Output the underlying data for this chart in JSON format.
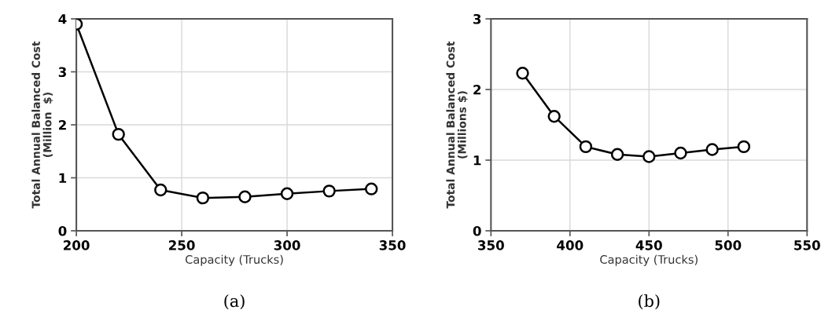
{
  "chart_data": [
    {
      "type": "line",
      "xlabel": "Capacity (Trucks)",
      "ylabel": "Total Annual Balanced Cost\n(Million  $)",
      "annotations": [
        "(a)"
      ],
      "x": [
        200,
        220,
        240,
        260,
        280,
        300,
        320,
        340
      ],
      "series": [
        {
          "color": "#000000",
          "values": [
            3.9,
            1.82,
            0.77,
            0.62,
            0.64,
            0.7,
            0.75,
            0.79
          ]
        }
      ],
      "xlim": [
        200,
        350
      ],
      "xticks": [
        200,
        250,
        300,
        350
      ],
      "ylim": [
        0,
        4
      ],
      "yticks": [
        0,
        1,
        2,
        3,
        4
      ],
      "grid": true,
      "marker": "circle",
      "line_style": "solid"
    },
    {
      "type": "line",
      "xlabel": "Capacity (Trucks)",
      "ylabel": "Total Annual Balanced Cost\n(Millions $)",
      "annotations": [
        "(b)"
      ],
      "x": [
        370,
        390,
        410,
        430,
        450,
        470,
        490,
        510
      ],
      "series": [
        {
          "color": "#000000",
          "values": [
            2.23,
            1.62,
            1.19,
            1.08,
            1.05,
            1.1,
            1.15,
            1.19
          ]
        }
      ],
      "xlim": [
        350,
        550
      ],
      "xticks": [
        350,
        400,
        450,
        500,
        550
      ],
      "ylim": [
        0,
        3
      ],
      "yticks": [
        0,
        1,
        2,
        3
      ],
      "grid": true,
      "marker": "circle",
      "line_style": "solid"
    }
  ]
}
